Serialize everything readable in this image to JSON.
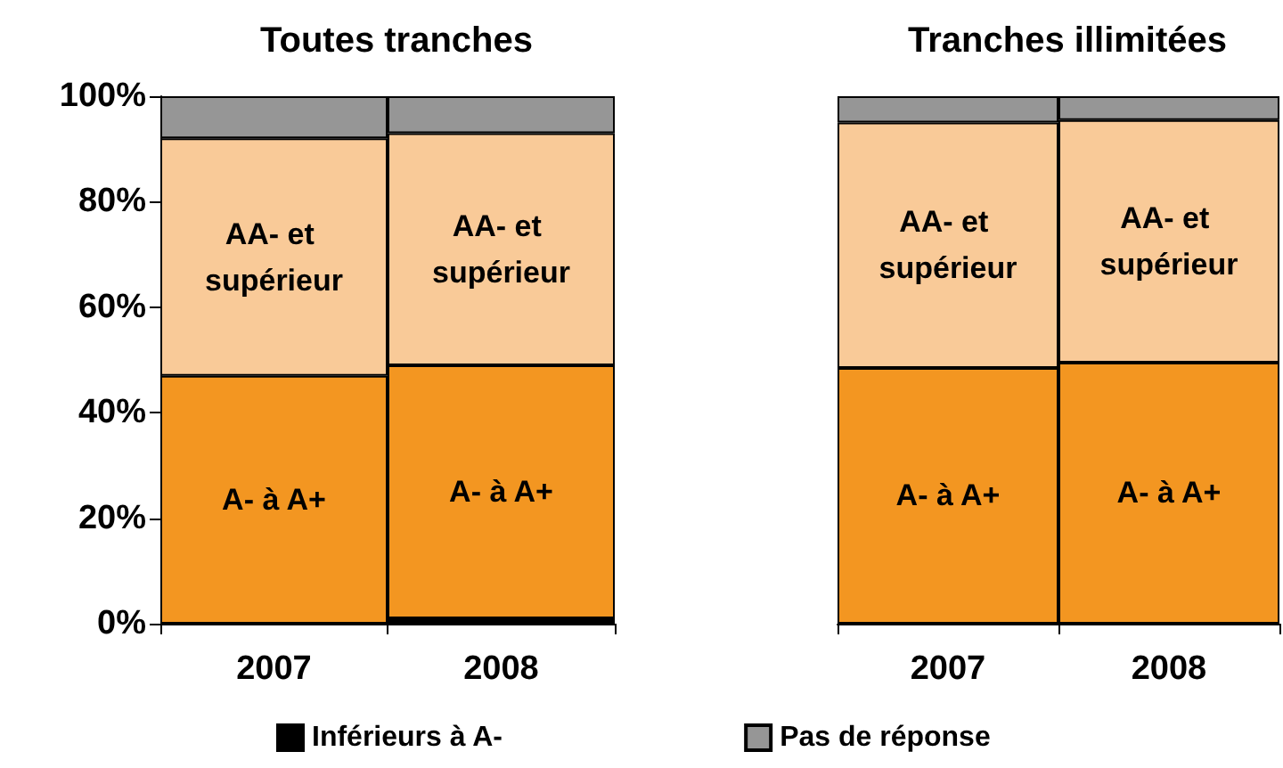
{
  "chart_data": [
    {
      "type": "bar",
      "title": "Toutes tranches",
      "categories": [
        "2007",
        "2008"
      ],
      "stacked": true,
      "legend": "bottom",
      "ylim": [
        0,
        100
      ],
      "yticks": [
        {
          "value": 0,
          "label": "0%"
        },
        {
          "value": 20,
          "label": "20%"
        },
        {
          "value": 40,
          "label": "40%"
        },
        {
          "value": 60,
          "label": "60%"
        },
        {
          "value": 80,
          "label": "80%"
        },
        {
          "value": 100,
          "label": "100%"
        }
      ],
      "series": [
        {
          "name": "Inférieurs à A-",
          "color": "#000000",
          "values": [
            0,
            1
          ]
        },
        {
          "name": "A- à A+",
          "color": "#f39621",
          "values": [
            47,
            48
          ]
        },
        {
          "name": "AA- et supérieur",
          "color": "#f9ca98",
          "values": [
            45,
            44
          ]
        },
        {
          "name": "Pas de réponse",
          "color": "#969696",
          "values": [
            8,
            7
          ]
        }
      ]
    },
    {
      "type": "bar",
      "title": "Tranches illimitées",
      "categories": [
        "2007",
        "2008"
      ],
      "stacked": true,
      "tick_labels": "x",
      "ylim": [
        0,
        100
      ],
      "series": [
        {
          "name": "A- à A+",
          "color": "#f39621",
          "values": [
            48.5,
            49.5
          ]
        },
        {
          "name": "AA- et supérieur",
          "color": "#f9ca98",
          "values": [
            46.5,
            46
          ]
        },
        {
          "name": "Pas de réponse",
          "color": "#969696",
          "values": [
            5,
            4.5
          ]
        }
      ]
    }
  ]
}
